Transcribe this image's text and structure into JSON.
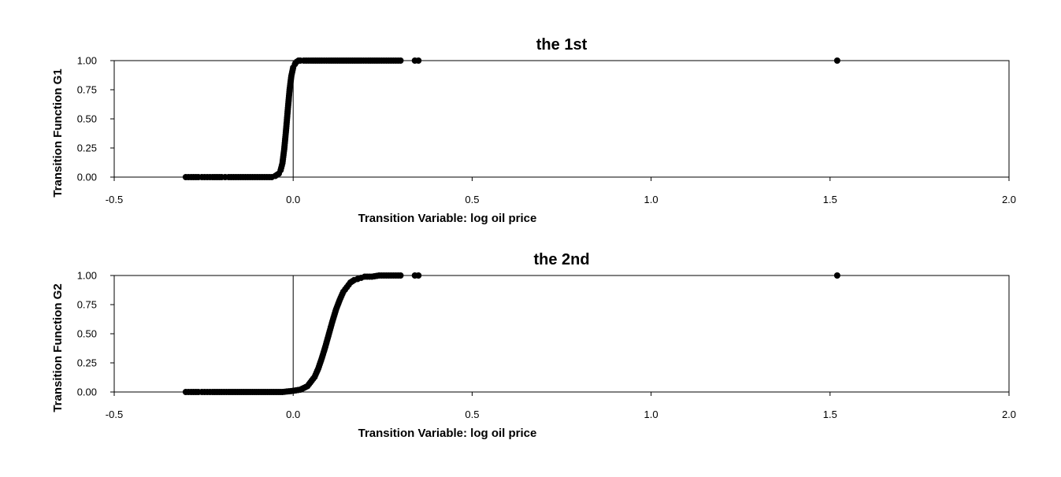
{
  "chart_data": [
    {
      "type": "scatter",
      "title": "the 1st",
      "xlabel": "Transition Variable: log oil price",
      "ylabel": "Transition Function G1",
      "xlim": [
        -0.5,
        2.0
      ],
      "ylim": [
        0.0,
        1.0
      ],
      "xticks": [
        "-0.5",
        "0.0",
        "0.5",
        "1.0",
        "1.5",
        "2.0"
      ],
      "yticks": [
        "0.00",
        "0.25",
        "0.50",
        "0.75",
        "1.00"
      ],
      "vertical_reference_line_x": 0.0,
      "grid": false,
      "legend": "none",
      "marker_color": "#000000",
      "points": {
        "x": [
          -0.3,
          -0.285,
          -0.265,
          -0.255,
          -0.24,
          -0.225,
          -0.2,
          -0.19,
          -0.18,
          -0.16,
          -0.14,
          -0.12,
          -0.1,
          -0.08,
          -0.06,
          -0.05,
          -0.04,
          -0.035,
          -0.03,
          -0.025,
          -0.02,
          -0.015,
          -0.01,
          -0.005,
          0.0,
          0.005,
          0.01,
          0.015,
          0.02,
          0.03,
          0.05,
          0.08,
          0.1,
          0.13,
          0.16,
          0.19,
          0.21,
          0.24,
          0.26,
          0.28,
          0.3,
          0.34,
          0.35,
          1.52
        ],
        "y": [
          0.0,
          0.0,
          0.0,
          0.0,
          0.0,
          0.0,
          0.0,
          0.0,
          0.0,
          0.0,
          0.0,
          0.0,
          0.0,
          0.0,
          0.0,
          0.01,
          0.03,
          0.06,
          0.12,
          0.24,
          0.4,
          0.58,
          0.75,
          0.87,
          0.94,
          0.97,
          0.99,
          1.0,
          1.0,
          1.0,
          1.0,
          1.0,
          1.0,
          1.0,
          1.0,
          1.0,
          1.0,
          1.0,
          1.0,
          1.0,
          1.0,
          1.0,
          1.0,
          1.0
        ]
      }
    },
    {
      "type": "scatter",
      "title": "the 2nd",
      "xlabel": "Transition Variable: log oil price",
      "ylabel": "Transition Function G2",
      "xlim": [
        -0.5,
        2.0
      ],
      "ylim": [
        0.0,
        1.0
      ],
      "xticks": [
        "-0.5",
        "0.0",
        "0.5",
        "1.0",
        "1.5",
        "2.0"
      ],
      "yticks": [
        "0.00",
        "0.25",
        "0.50",
        "0.75",
        "1.00"
      ],
      "vertical_reference_line_x": 0.0,
      "grid": false,
      "legend": "none",
      "marker_color": "#000000",
      "points": {
        "x": [
          -0.3,
          -0.285,
          -0.265,
          -0.255,
          -0.24,
          -0.225,
          -0.2,
          -0.18,
          -0.15,
          -0.12,
          -0.09,
          -0.06,
          -0.03,
          0.0,
          0.02,
          0.04,
          0.06,
          0.07,
          0.08,
          0.09,
          0.1,
          0.11,
          0.12,
          0.13,
          0.14,
          0.15,
          0.16,
          0.17,
          0.18,
          0.19,
          0.2,
          0.22,
          0.24,
          0.26,
          0.28,
          0.3,
          0.34,
          0.35,
          1.52
        ],
        "y": [
          0.0,
          0.0,
          0.0,
          0.0,
          0.0,
          0.0,
          0.0,
          0.0,
          0.0,
          0.0,
          0.0,
          0.0,
          0.0,
          0.01,
          0.02,
          0.05,
          0.13,
          0.2,
          0.29,
          0.39,
          0.5,
          0.61,
          0.71,
          0.79,
          0.86,
          0.9,
          0.94,
          0.96,
          0.97,
          0.98,
          0.99,
          0.99,
          1.0,
          1.0,
          1.0,
          1.0,
          1.0,
          1.0,
          1.0
        ]
      }
    }
  ]
}
